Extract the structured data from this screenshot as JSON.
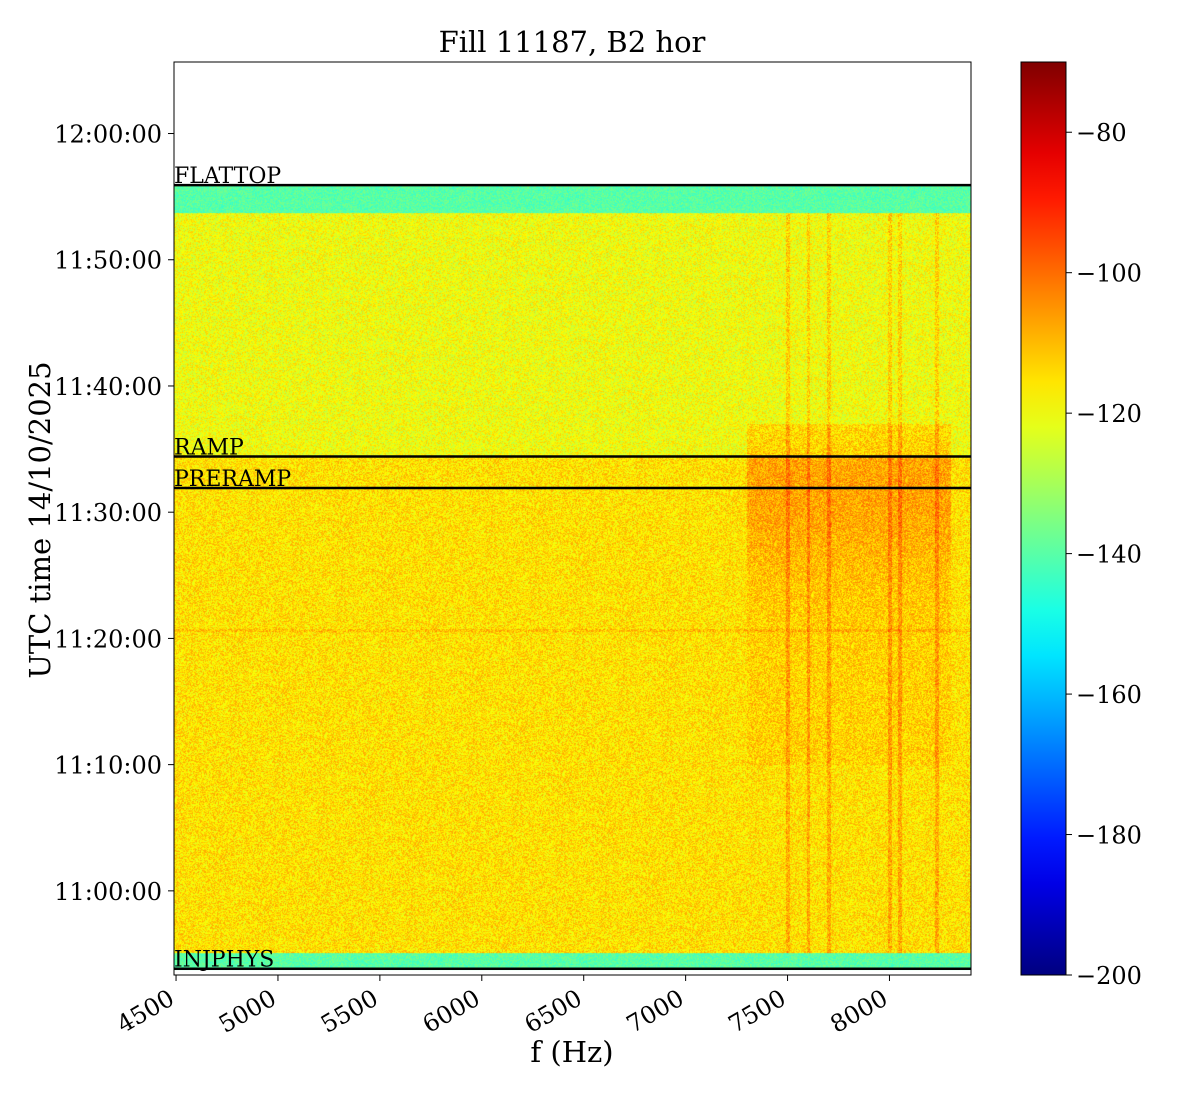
{
  "chart_data": {
    "type": "heatmap",
    "title": "Fill 11187, B2 hor",
    "xlabel": "f (Hz)",
    "ylabel": "UTC time 14/10/2025",
    "xlim": [
      4490,
      8400
    ],
    "x_ticks": [
      4500,
      5000,
      5500,
      6000,
      6500,
      7000,
      7500,
      8000
    ],
    "x_tick_labels": [
      "4500",
      "5000",
      "5500",
      "6000",
      "6500",
      "7000",
      "7500",
      "8000"
    ],
    "ylim": [
      "10:53:20",
      "12:05:40"
    ],
    "y_ticks": [
      "11:00:00",
      "11:10:00",
      "11:20:00",
      "11:30:00",
      "11:40:00",
      "11:50:00",
      "12:00:00"
    ],
    "data_time_range": [
      "10:53:45",
      "11:55:55"
    ],
    "colormap": "jet",
    "colorbar": {
      "range": [
        -200,
        -70
      ],
      "ticks": [
        -80,
        -100,
        -120,
        -140,
        -160,
        -180,
        -200
      ],
      "tick_labels": [
        "−80",
        "−100",
        "−120",
        "−140",
        "−160",
        "−180",
        "−200"
      ]
    },
    "typical_level_dB": -115,
    "events": [
      {
        "label": "FLATTOP",
        "time": "11:55:55"
      },
      {
        "label": "RAMP",
        "time": "11:34:25"
      },
      {
        "label": "PRERAMP",
        "time": "11:31:55"
      },
      {
        "label": "INJPHYS",
        "time": "10:53:50"
      }
    ],
    "hot_bands_Hz": [
      7500,
      7600,
      7700,
      8000,
      8050,
      8230
    ],
    "grid": false
  }
}
